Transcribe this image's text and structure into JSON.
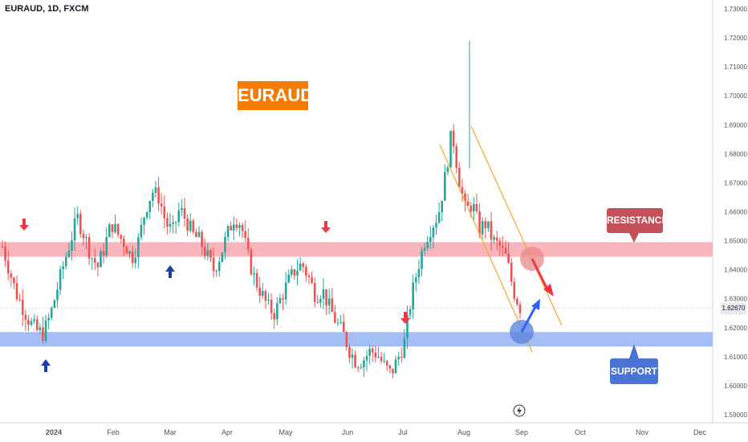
{
  "header": {
    "symbol_line": "EURAUD, 1D, FXCM"
  },
  "title_badge": "EURAUD",
  "labels": {
    "resistance": "RESISTANCE",
    "support": "SUPPORT"
  },
  "current_price": "1.62670",
  "colors": {
    "up": "#26a69a",
    "down": "#ef5350",
    "resistance_zone": "#f8a8b0",
    "support_zone": "#9ab8f5",
    "badge": "#f57c00",
    "trend_line": "#f5a623"
  },
  "chart_data": {
    "type": "candlestick",
    "symbol": "EURAUD",
    "timeframe": "1D",
    "ylim": [
      1.59,
      1.73
    ],
    "y_ticks": [
      "1.73000",
      "1.72000",
      "1.71000",
      "1.70000",
      "1.69000",
      "1.68000",
      "1.67000",
      "1.66000",
      "1.65000",
      "1.64000",
      "1.63000",
      "1.62000",
      "1.61000",
      "1.60000",
      "1.59000"
    ],
    "x_ticks": [
      "2024",
      "Feb",
      "Mar",
      "Apr",
      "May",
      "Jun",
      "Jul",
      "Aug",
      "Sep",
      "Oct",
      "Nov",
      "Dec"
    ],
    "resistance_zone": [
      1.6445,
      1.6495
    ],
    "support_zone": [
      1.6135,
      1.6185
    ],
    "close_path": [
      1.648,
      1.64,
      1.632,
      1.627,
      1.622,
      1.619,
      1.618,
      1.624,
      1.633,
      1.642,
      1.65,
      1.658,
      1.652,
      1.645,
      1.641,
      1.648,
      1.656,
      1.652,
      1.649,
      1.644,
      1.65,
      1.661,
      1.667,
      1.665,
      1.656,
      1.653,
      1.661,
      1.657,
      1.652,
      1.65,
      1.645,
      1.64,
      1.645,
      1.652,
      1.658,
      1.656,
      1.645,
      1.637,
      1.632,
      1.627,
      1.625,
      1.631,
      1.636,
      1.64,
      1.642,
      1.637,
      1.631,
      1.633,
      1.627,
      1.622,
      1.618,
      1.612,
      1.608,
      1.609,
      1.612,
      1.611,
      1.607,
      1.604,
      1.609,
      1.615,
      1.63,
      1.641,
      1.65,
      1.655,
      1.659,
      1.672,
      1.688,
      1.672,
      1.66,
      1.663,
      1.654,
      1.656,
      1.65,
      1.648,
      1.644,
      1.633,
      1.627
    ],
    "annotations": [
      "arrows_down_at_resistance",
      "arrows_up_at_support",
      "falling_channel",
      "circle_resistance_retest",
      "circle_support_retest"
    ]
  }
}
